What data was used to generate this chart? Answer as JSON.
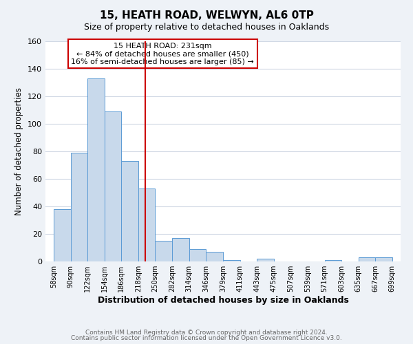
{
  "title": "15, HEATH ROAD, WELWYN, AL6 0TP",
  "subtitle": "Size of property relative to detached houses in Oaklands",
  "xlabel": "Distribution of detached houses by size in Oaklands",
  "ylabel": "Number of detached properties",
  "bar_left_edges": [
    58,
    90,
    122,
    154,
    186,
    218,
    250,
    282,
    314,
    346,
    379,
    411,
    443,
    475,
    507,
    539,
    571,
    603,
    635,
    667
  ],
  "bar_heights": [
    38,
    79,
    133,
    109,
    73,
    53,
    15,
    17,
    9,
    7,
    1,
    0,
    2,
    0,
    0,
    0,
    1,
    0,
    3,
    3
  ],
  "bar_widths": [
    32,
    32,
    32,
    32,
    32,
    32,
    32,
    32,
    32,
    32,
    32,
    32,
    32,
    32,
    32,
    32,
    32,
    32,
    32,
    32
  ],
  "tick_labels": [
    "58sqm",
    "90sqm",
    "122sqm",
    "154sqm",
    "186sqm",
    "218sqm",
    "250sqm",
    "282sqm",
    "314sqm",
    "346sqm",
    "379sqm",
    "411sqm",
    "443sqm",
    "475sqm",
    "507sqm",
    "539sqm",
    "571sqm",
    "603sqm",
    "635sqm",
    "667sqm",
    "699sqm"
  ],
  "tick_positions": [
    58,
    90,
    122,
    154,
    186,
    218,
    250,
    282,
    314,
    346,
    379,
    411,
    443,
    475,
    507,
    539,
    571,
    603,
    635,
    667,
    699
  ],
  "bar_color": "#c8d9eb",
  "bar_edge_color": "#5b9bd5",
  "vline_x": 231,
  "vline_color": "#cc0000",
  "ylim": [
    0,
    160
  ],
  "yticks": [
    0,
    20,
    40,
    60,
    80,
    100,
    120,
    140,
    160
  ],
  "annotation_box_text": "15 HEATH ROAD: 231sqm\n← 84% of detached houses are smaller (450)\n16% of semi-detached houses are larger (85) →",
  "footer_line1": "Contains HM Land Registry data © Crown copyright and database right 2024.",
  "footer_line2": "Contains public sector information licensed under the Open Government Licence v3.0.",
  "background_color": "#eef2f7",
  "plot_bg_color": "#ffffff",
  "grid_color": "#d0d8e4"
}
